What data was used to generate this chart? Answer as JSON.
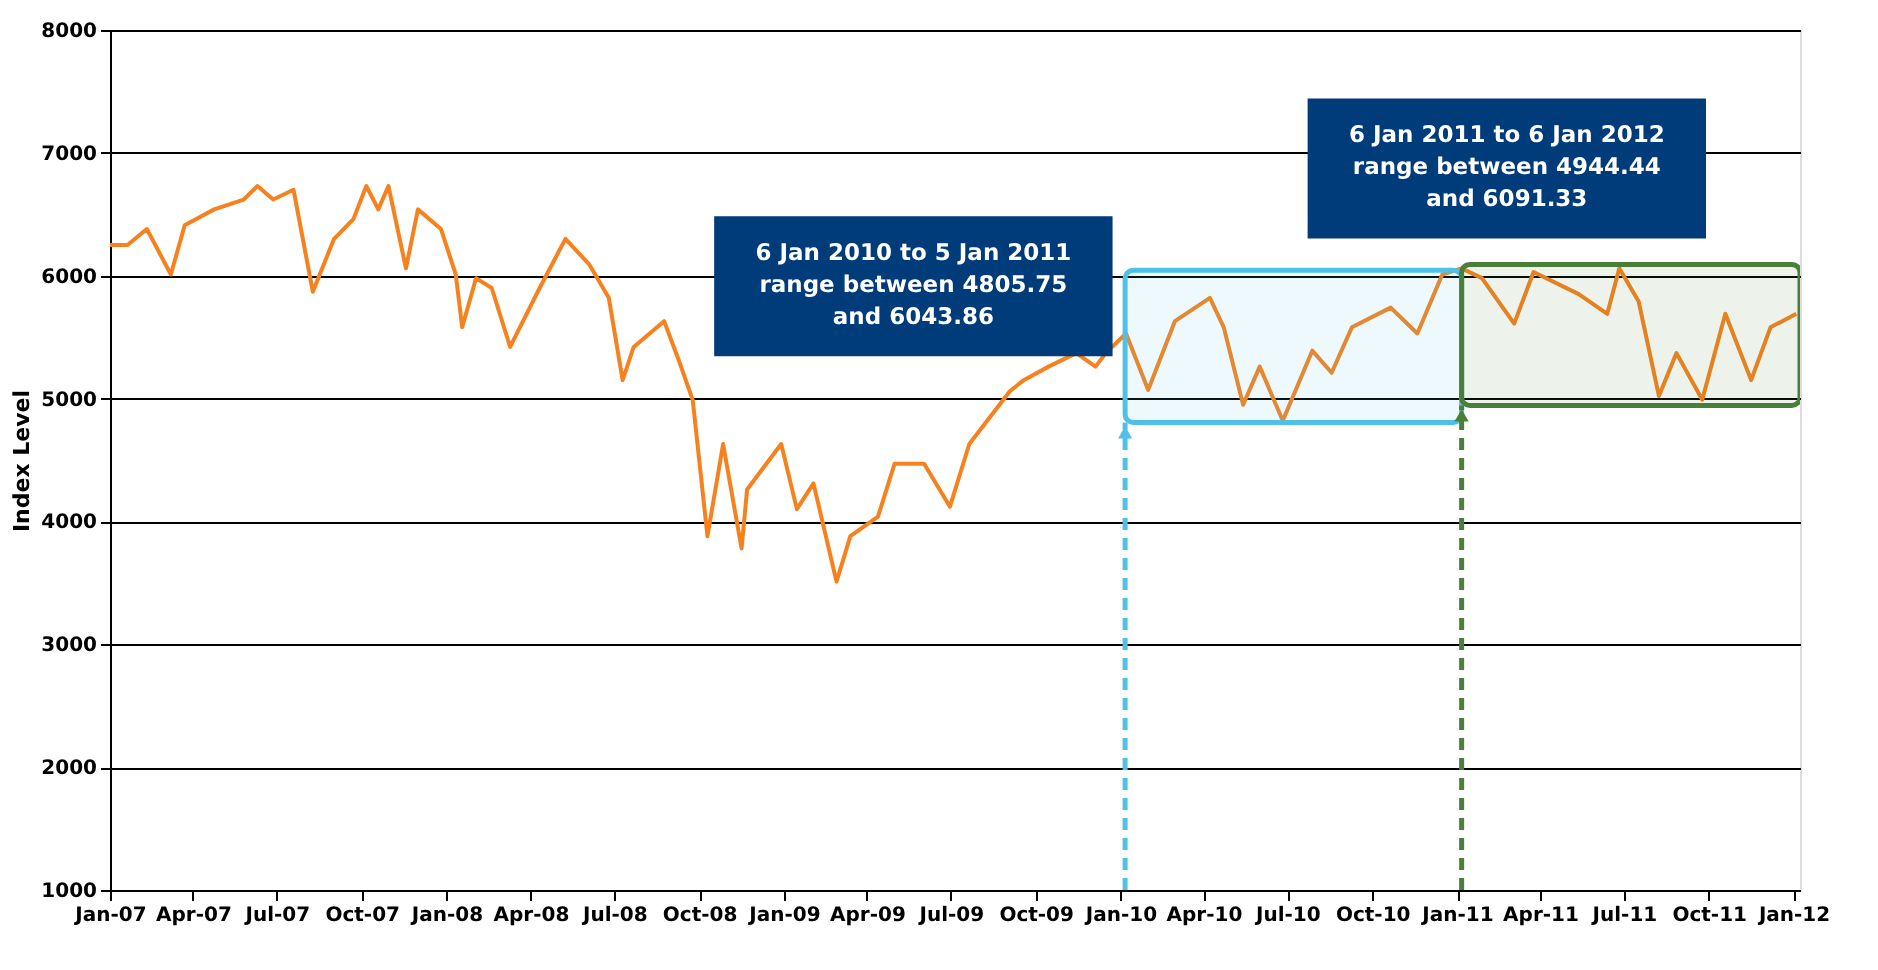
{
  "chart_data": {
    "type": "line",
    "ylabel": "Index Level",
    "x": [
      "2007-01-01",
      "2007-01-20",
      "2007-02-10",
      "2007-03-08",
      "2007-03-23",
      "2007-04-24",
      "2007-05-26",
      "2007-06-10",
      "2007-06-27",
      "2007-07-19",
      "2007-08-09",
      "2007-09-01",
      "2007-09-22",
      "2007-10-06",
      "2007-10-19",
      "2007-10-30",
      "2007-11-18",
      "2007-12-01",
      "2007-12-26",
      "2008-01-11",
      "2008-01-18",
      "2008-02-02",
      "2008-02-19",
      "2008-03-10",
      "2008-04-11",
      "2008-05-09",
      "2008-06-04",
      "2008-06-25",
      "2008-07-10",
      "2008-07-22",
      "2008-08-24",
      "2008-09-09",
      "2008-09-24",
      "2008-10-10",
      "2008-10-27",
      "2008-11-16",
      "2008-11-22",
      "2008-12-29",
      "2009-01-15",
      "2009-02-02",
      "2009-02-27",
      "2009-03-14",
      "2009-04-13",
      "2009-05-01",
      "2009-06-02",
      "2009-06-30",
      "2009-07-21",
      "2009-09-03",
      "2009-09-18",
      "2009-10-15",
      "2009-11-14",
      "2009-12-05",
      "2009-12-16",
      "2010-01-07",
      "2010-01-31",
      "2010-03-01",
      "2010-04-08",
      "2010-04-23",
      "2010-05-14",
      "2010-06-01",
      "2010-06-26",
      "2010-07-28",
      "2010-08-18",
      "2010-09-09",
      "2010-10-21",
      "2010-11-19",
      "2010-12-16",
      "2011-01-06",
      "2011-01-28",
      "2011-03-04",
      "2011-03-25",
      "2011-05-13",
      "2011-06-13",
      "2011-06-26",
      "2011-07-17",
      "2011-08-08",
      "2011-08-27",
      "2011-09-24",
      "2011-10-19",
      "2011-11-16",
      "2011-12-07",
      "2012-01-04"
    ],
    "series": [
      {
        "color": "#f5821f",
        "values": [
          6250,
          6250,
          6380,
          6010,
          6410,
          6540,
          6620,
          6730,
          6620,
          6700,
          5870,
          6300,
          6460,
          6730,
          6540,
          6730,
          6060,
          6540,
          6380,
          6010,
          5580,
          5980,
          5900,
          5420,
          5900,
          6300,
          6090,
          5820,
          5150,
          5420,
          5630,
          5310,
          4990,
          3880,
          4630,
          3780,
          4260,
          4630,
          4100,
          4310,
          3510,
          3880,
          4040,
          4470,
          4470,
          4120,
          4630,
          5060,
          5150,
          5260,
          5370,
          5260,
          5370,
          5530,
          5070,
          5630,
          5820,
          5580,
          4950,
          5260,
          4820,
          5390,
          5210,
          5580,
          5740,
          5530,
          6010,
          6060,
          5980,
          5610,
          6030,
          5850,
          5690,
          6060,
          5790,
          5020,
          5370,
          4990,
          5690,
          5150,
          5580,
          5690
        ]
      }
    ],
    "xlim": [
      "2007-01-01",
      "2012-01-08"
    ],
    "xticks": [
      {
        "value": "2007-01-01",
        "label": "Jan-07"
      },
      {
        "value": "2007-04-01",
        "label": "Apr-07"
      },
      {
        "value": "2007-07-01",
        "label": "Jul-07"
      },
      {
        "value": "2007-10-01",
        "label": "Oct-07"
      },
      {
        "value": "2008-01-01",
        "label": "Jan-08"
      },
      {
        "value": "2008-04-01",
        "label": "Apr-08"
      },
      {
        "value": "2008-07-01",
        "label": "Jul-08"
      },
      {
        "value": "2008-10-01",
        "label": "Oct-08"
      },
      {
        "value": "2009-01-01",
        "label": "Jan-09"
      },
      {
        "value": "2009-04-01",
        "label": "Apr-09"
      },
      {
        "value": "2009-07-01",
        "label": "Jul-09"
      },
      {
        "value": "2009-10-01",
        "label": "Oct-09"
      },
      {
        "value": "2010-01-01",
        "label": "Jan-10"
      },
      {
        "value": "2010-04-01",
        "label": "Apr-10"
      },
      {
        "value": "2010-07-01",
        "label": "Jul-10"
      },
      {
        "value": "2010-10-01",
        "label": "Oct-10"
      },
      {
        "value": "2011-01-01",
        "label": "Jan-11"
      },
      {
        "value": "2011-04-01",
        "label": "Apr-11"
      },
      {
        "value": "2011-07-01",
        "label": "Jul-11"
      },
      {
        "value": "2011-10-01",
        "label": "Oct-11"
      },
      {
        "value": "2012-01-01",
        "label": "Jan-12"
      }
    ],
    "ylim": [
      1000,
      8000
    ],
    "yticks": [
      1000,
      2000,
      3000,
      4000,
      5000,
      6000,
      7000,
      8000
    ],
    "grid": "y",
    "ref_lines": [
      {
        "axis": "x",
        "value": "2010-01-06",
        "color": "#4fc1e9",
        "line_style": "dashed"
      },
      {
        "axis": "x",
        "value": "2011-01-06",
        "color": "#4a7f3a",
        "line_style": "dashed"
      }
    ],
    "bands": [
      {
        "axis": "y",
        "from": 4805.75,
        "to": 6043.86,
        "color": "#4fc1e9",
        "label": "6 Jan 2010 to 5 Jan 2011 range between 4805.75 and 6043.86"
      },
      {
        "axis": "y",
        "from": 4944.44,
        "to": 6091.33,
        "color": "#4a7f3a",
        "label": "6 Jan 2011 to 6 Jan 2012 range between 4944.44 and 6091.33"
      }
    ]
  }
}
